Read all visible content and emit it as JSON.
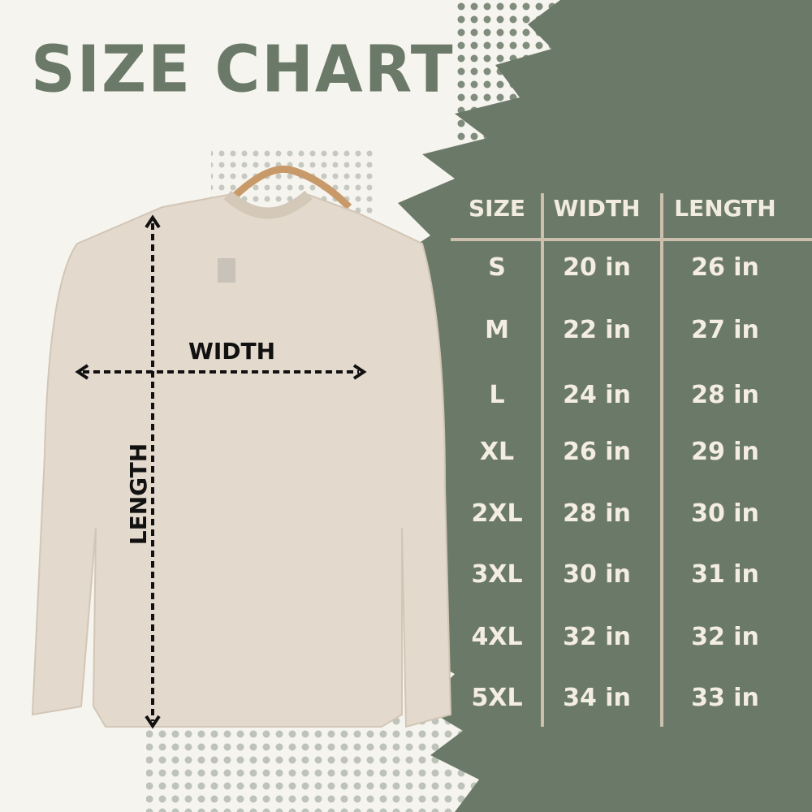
{
  "title": "SIZE CHART",
  "garment_labels": {
    "width": "WIDTH",
    "length": "LENGTH"
  },
  "colors": {
    "accent_green": "#6b7a68",
    "background": "#f6f4ef",
    "garment": "#e3d9cc",
    "table_text": "#f4ede2",
    "grid_line": "#cdbfae"
  },
  "table": {
    "headers": [
      "SIZE",
      "WIDTH",
      "LENGTH"
    ],
    "rows": [
      [
        "S",
        "20 in",
        "26 in"
      ],
      [
        "M",
        "22 in",
        "27 in"
      ],
      [
        "L",
        "24 in",
        "28 in"
      ],
      [
        "XL",
        "26 in",
        "29 in"
      ],
      [
        "2XL",
        "28 in",
        "30 in"
      ],
      [
        "3XL",
        "30 in",
        "31 in"
      ],
      [
        "4XL",
        "32 in",
        "32 in"
      ],
      [
        "5XL",
        "34 in",
        "33 in"
      ]
    ]
  }
}
